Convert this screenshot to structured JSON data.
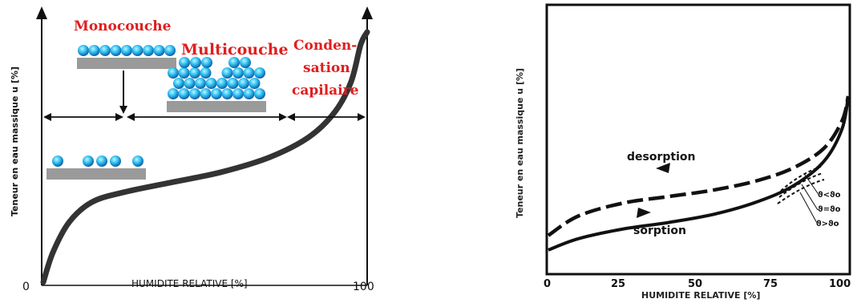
{
  "chart_data": [
    {
      "type": "line",
      "title": "",
      "xlabel": "HUMIDITE RELATIVE [%]",
      "ylabel": "Teneur en eau massique u [%]",
      "x_ticks": [
        "0",
        "100"
      ],
      "xlim": [
        0,
        100
      ],
      "annotations": {
        "monocouche": "Monocouche",
        "multicouche": "Multicouche",
        "condensation_1": "Conden-",
        "condensation_2": "sation",
        "condensation_3": "capilaire"
      },
      "series": [
        {
          "points": [
            [
              0,
              0
            ],
            [
              3,
              12
            ],
            [
              8,
              24
            ],
            [
              15,
              32
            ],
            [
              25,
              36
            ],
            [
              40,
              40
            ],
            [
              55,
              44
            ],
            [
              70,
              50
            ],
            [
              82,
              58
            ],
            [
              90,
              68
            ],
            [
              95,
              80
            ],
            [
              98,
              95
            ],
            [
              100,
              100
            ]
          ]
        }
      ]
    },
    {
      "type": "line",
      "title": "",
      "xlabel": "HUMIDITE RELATIVE [%]",
      "ylabel": "Teneur en eau massique u [%]",
      "x_ticks": [
        "0",
        "25",
        "50",
        "75",
        "100"
      ],
      "xlim": [
        0,
        100
      ],
      "annotations": {
        "desorption": "desorption",
        "sorption": "sorption",
        "theta_lt": "ϑ<ϑo",
        "theta_eq": "ϑ=ϑo",
        "theta_gt": "ϑ>ϑo"
      },
      "series": [
        {
          "name": "desorption",
          "points": [
            [
              0,
              14
            ],
            [
              10,
              26
            ],
            [
              25,
              34
            ],
            [
              40,
              38
            ],
            [
              55,
              42
            ],
            [
              70,
              48
            ],
            [
              82,
              56
            ],
            [
              92,
              68
            ],
            [
              98,
              85
            ],
            [
              100,
              100
            ]
          ]
        },
        {
          "name": "sorption",
          "points": [
            [
              0,
              5
            ],
            [
              10,
              12
            ],
            [
              25,
              18
            ],
            [
              40,
              22
            ],
            [
              55,
              27
            ],
            [
              70,
              35
            ],
            [
              82,
              45
            ],
            [
              92,
              60
            ],
            [
              98,
              80
            ],
            [
              100,
              100
            ]
          ]
        }
      ]
    }
  ]
}
